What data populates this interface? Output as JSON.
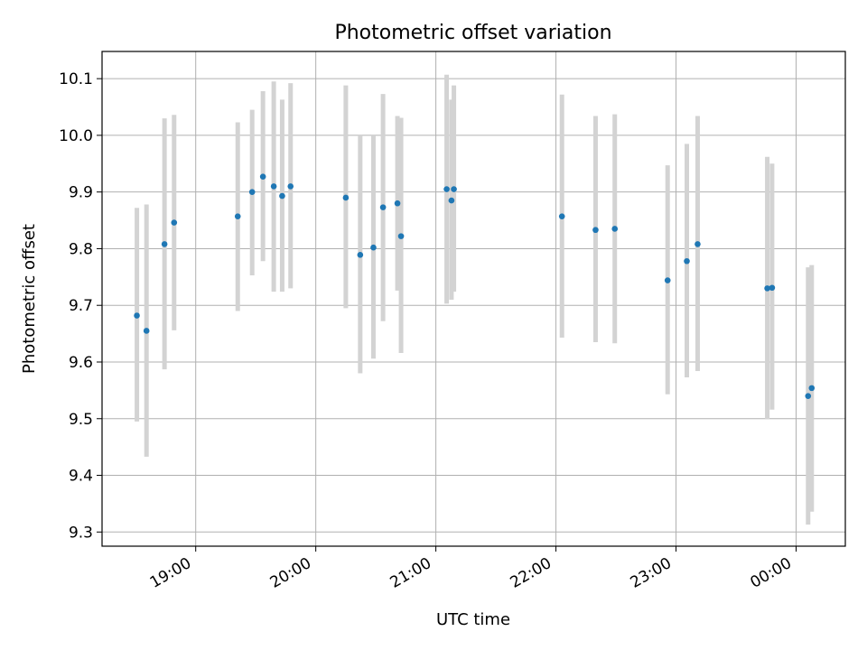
{
  "chart_data": {
    "type": "scatter",
    "title": "Photometric offset variation",
    "xlabel": "UTC time",
    "ylabel": "Photometric offset",
    "x_unit": "hours",
    "xlim": [
      18.22,
      24.41
    ],
    "ylim": [
      9.275,
      10.148
    ],
    "x_ticks": [
      {
        "value": 19,
        "label": "19:00"
      },
      {
        "value": 20,
        "label": "20:00"
      },
      {
        "value": 21,
        "label": "21:00"
      },
      {
        "value": 22,
        "label": "22:00"
      },
      {
        "value": 23,
        "label": "23:00"
      },
      {
        "value": 24,
        "label": "00:00"
      }
    ],
    "y_ticks": [
      {
        "value": 9.3,
        "label": "9.3"
      },
      {
        "value": 9.4,
        "label": "9.4"
      },
      {
        "value": 9.5,
        "label": "9.5"
      },
      {
        "value": 9.6,
        "label": "9.6"
      },
      {
        "value": 9.7,
        "label": "9.7"
      },
      {
        "value": 9.8,
        "label": "9.8"
      },
      {
        "value": 9.9,
        "label": "9.9"
      },
      {
        "value": 10.0,
        "label": "10.0"
      },
      {
        "value": 10.1,
        "label": "10.1"
      }
    ],
    "grid": true,
    "point_color": "#1f77b4",
    "errorbar_color": "#d3d3d3",
    "points": [
      {
        "x": 18.51,
        "y": 9.682,
        "ylow": 9.495,
        "yhigh": 9.872
      },
      {
        "x": 18.59,
        "y": 9.655,
        "ylow": 9.433,
        "yhigh": 9.878
      },
      {
        "x": 18.74,
        "y": 9.808,
        "ylow": 9.587,
        "yhigh": 10.03
      },
      {
        "x": 18.82,
        "y": 9.846,
        "ylow": 9.656,
        "yhigh": 10.036
      },
      {
        "x": 19.35,
        "y": 9.857,
        "ylow": 9.69,
        "yhigh": 10.023
      },
      {
        "x": 19.47,
        "y": 9.9,
        "ylow": 9.753,
        "yhigh": 10.045
      },
      {
        "x": 19.56,
        "y": 9.927,
        "ylow": 9.778,
        "yhigh": 10.078
      },
      {
        "x": 19.65,
        "y": 9.91,
        "ylow": 9.724,
        "yhigh": 10.095
      },
      {
        "x": 19.72,
        "y": 9.893,
        "ylow": 9.724,
        "yhigh": 10.063
      },
      {
        "x": 19.79,
        "y": 9.91,
        "ylow": 9.73,
        "yhigh": 10.092
      },
      {
        "x": 20.25,
        "y": 9.89,
        "ylow": 9.695,
        "yhigh": 10.088
      },
      {
        "x": 20.37,
        "y": 9.789,
        "ylow": 9.58,
        "yhigh": 10.0
      },
      {
        "x": 20.48,
        "y": 9.802,
        "ylow": 9.606,
        "yhigh": 10.0
      },
      {
        "x": 20.56,
        "y": 9.873,
        "ylow": 9.672,
        "yhigh": 10.073
      },
      {
        "x": 20.68,
        "y": 9.88,
        "ylow": 9.726,
        "yhigh": 10.034
      },
      {
        "x": 20.71,
        "y": 9.822,
        "ylow": 9.616,
        "yhigh": 10.031
      },
      {
        "x": 21.09,
        "y": 9.905,
        "ylow": 9.703,
        "yhigh": 10.107
      },
      {
        "x": 21.13,
        "y": 9.885,
        "ylow": 9.71,
        "yhigh": 10.063
      },
      {
        "x": 21.15,
        "y": 9.905,
        "ylow": 9.724,
        "yhigh": 10.088
      },
      {
        "x": 22.05,
        "y": 9.857,
        "ylow": 9.643,
        "yhigh": 10.072
      },
      {
        "x": 22.33,
        "y": 9.833,
        "ylow": 9.635,
        "yhigh": 10.034
      },
      {
        "x": 22.49,
        "y": 9.835,
        "ylow": 9.633,
        "yhigh": 10.037
      },
      {
        "x": 22.93,
        "y": 9.744,
        "ylow": 9.543,
        "yhigh": 9.947
      },
      {
        "x": 23.09,
        "y": 9.778,
        "ylow": 9.573,
        "yhigh": 9.985
      },
      {
        "x": 23.18,
        "y": 9.808,
        "ylow": 9.584,
        "yhigh": 10.034
      },
      {
        "x": 23.76,
        "y": 9.73,
        "ylow": 9.499,
        "yhigh": 9.962
      },
      {
        "x": 23.8,
        "y": 9.731,
        "ylow": 9.516,
        "yhigh": 9.95
      },
      {
        "x": 24.1,
        "y": 9.54,
        "ylow": 9.313,
        "yhigh": 9.767
      },
      {
        "x": 24.13,
        "y": 9.554,
        "ylow": 9.336,
        "yhigh": 9.771
      }
    ]
  }
}
